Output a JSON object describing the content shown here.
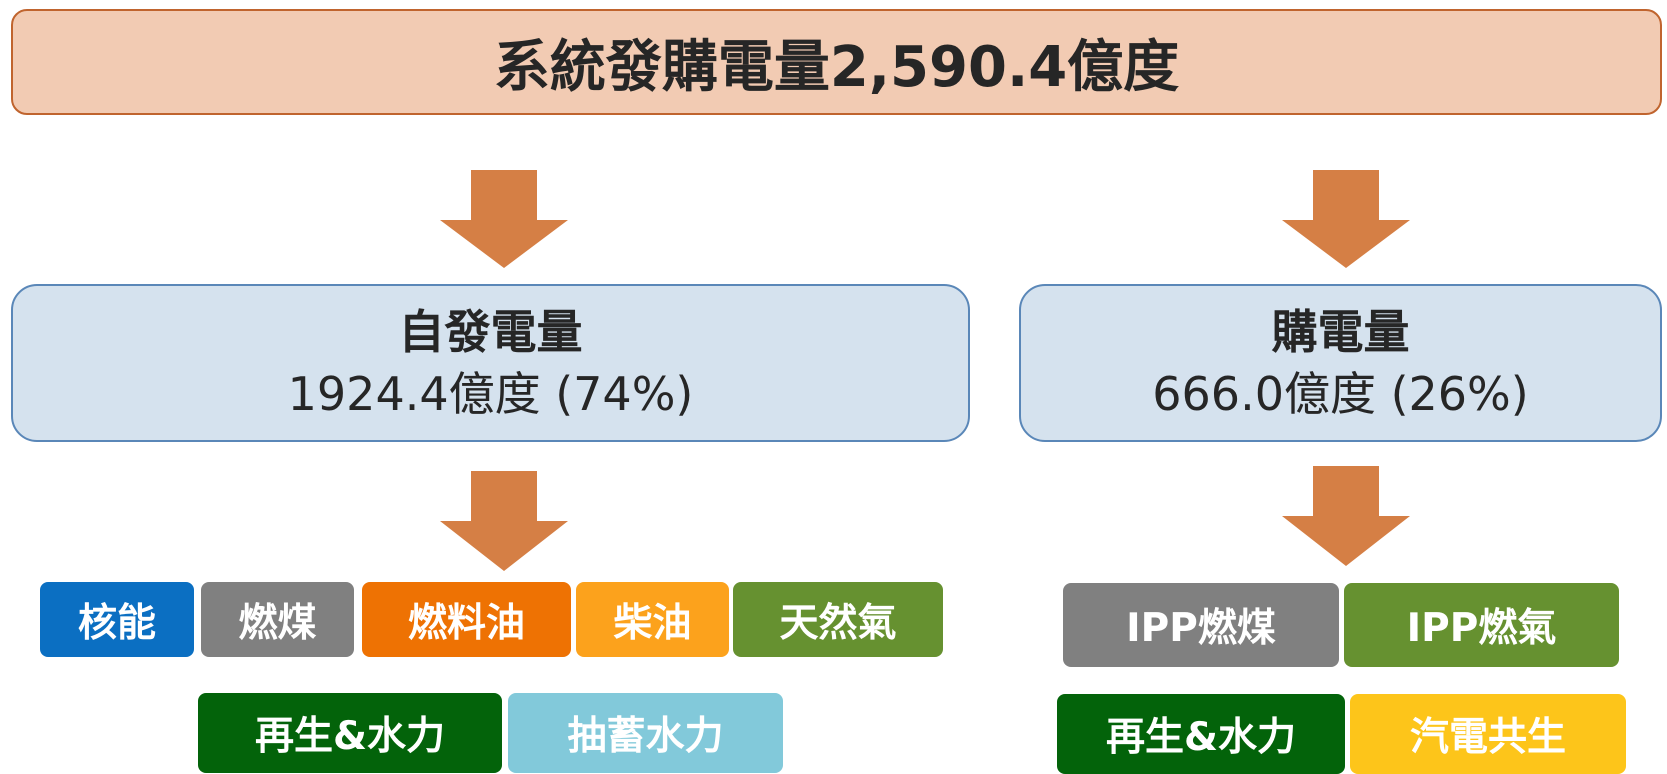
{
  "header": {
    "title": "系統發購電量2,590.4億度"
  },
  "left": {
    "title": "自發電量",
    "subtitle": "1924.4億度 (74%)",
    "sources": [
      "核能",
      "燃煤",
      "燃料油",
      "柴油",
      "天然氣",
      "再生&水力",
      "抽蓄水力"
    ]
  },
  "right": {
    "title": "購電量",
    "subtitle": "666.0億度 (26%)",
    "sources": [
      "IPP燃煤",
      "IPP燃氣",
      "再生&水力",
      "汽電共生"
    ]
  }
}
